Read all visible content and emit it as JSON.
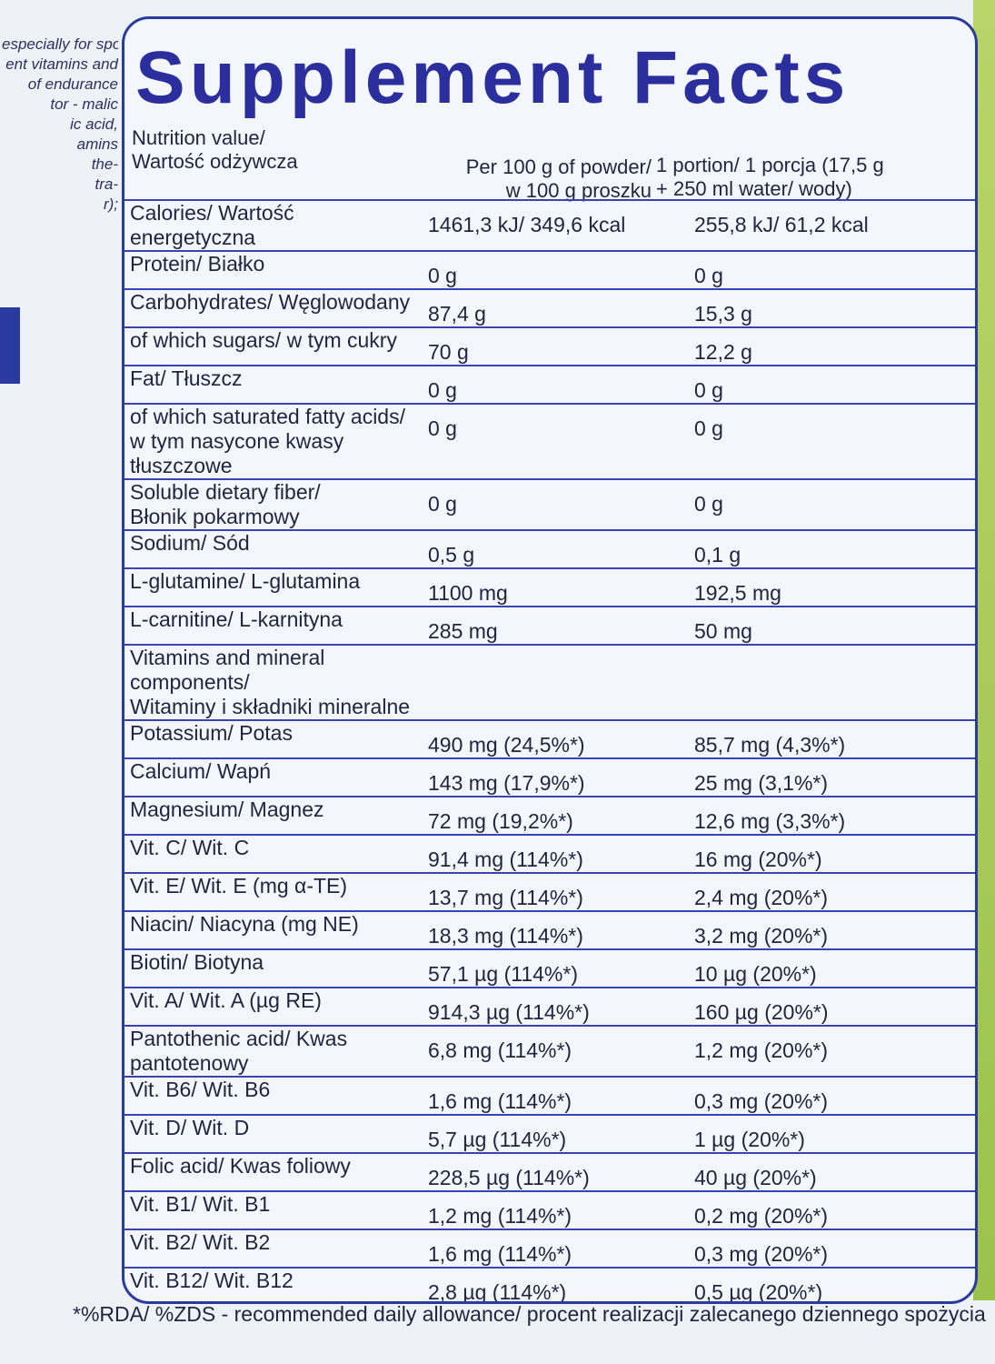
{
  "side_text": [
    "especially for sports",
    "ent vitamins and",
    "of endurance",
    "tor - malic",
    "ic acid,",
    "amins",
    "the-",
    "tra-",
    "r);"
  ],
  "title": "Supplement Facts",
  "header": {
    "nutrition": "Nutrition value/\nWartość odżywcza",
    "per100": "Per 100 g of powder/\nw 100 g proszku",
    "portion": "1 portion/ 1 porcja (17,5 g\n+ 250 ml water/ wody)"
  },
  "rows": [
    {
      "label": "Calories/ Wartość energetyczna",
      "per100": "1461,3 kJ/ 349,6 kcal",
      "portion": "255,8 kJ/ 61,2 kcal"
    },
    {
      "label": "Protein/ Białko",
      "per100": "0 g",
      "portion": "0 g"
    },
    {
      "label": "Carbohydrates/ Węglowodany",
      "per100": "87,4 g",
      "portion": "15,3 g"
    },
    {
      "label": "of which sugars/ w tym cukry",
      "per100": "70 g",
      "portion": "12,2 g"
    },
    {
      "label": "Fat/ Tłuszcz",
      "per100": "0 g",
      "portion": "0 g"
    },
    {
      "label": "of which saturated fatty acids/\nw tym nasycone kwasy tłuszczowe",
      "per100": "0 g",
      "portion": "0 g"
    },
    {
      "label": "Soluble dietary fiber/\nBłonik pokarmowy",
      "per100": "0 g",
      "portion": "0 g"
    },
    {
      "label": "Sodium/ Sód",
      "per100": "0,5 g",
      "portion": "0,1 g"
    },
    {
      "label": "L-glutamine/ L-glutamina",
      "per100": "1100 mg",
      "portion": "192,5 mg"
    },
    {
      "label": "L-carnitine/ L-karnityna",
      "per100": "285 mg",
      "portion": "50 mg"
    },
    {
      "label": "Vitamins and mineral components/\nWitaminy i składniki mineralne"
    },
    {
      "label": "Potassium/ Potas",
      "per100": "490 mg (24,5%*)",
      "portion": "85,7 mg (4,3%*)"
    },
    {
      "label": "Calcium/ Wapń",
      "per100": "143 mg (17,9%*)",
      "portion": "25 mg (3,1%*)"
    },
    {
      "label": "Magnesium/ Magnez",
      "per100": "72 mg (19,2%*)",
      "portion": "12,6 mg (3,3%*)"
    },
    {
      "label": "Vit. C/ Wit. C",
      "per100": "91,4 mg (114%*)",
      "portion": "16 mg (20%*)"
    },
    {
      "label": "Vit. E/ Wit. E (mg α-TE)",
      "per100": "13,7 mg (114%*)",
      "portion": "2,4 mg (20%*)"
    },
    {
      "label": "Niacin/ Niacyna (mg NE)",
      "per100": "18,3 mg (114%*)",
      "portion": "3,2 mg (20%*)"
    },
    {
      "label": "Biotin/ Biotyna",
      "per100": "57,1 µg (114%*)",
      "portion": "10 µg (20%*)"
    },
    {
      "label": "Vit. A/ Wit. A (µg RE)",
      "per100": "914,3 µg (114%*)",
      "portion": "160 µg (20%*)"
    },
    {
      "label": "Pantothenic acid/ Kwas pantotenowy",
      "per100": "6,8 mg (114%*)",
      "portion": "1,2 mg (20%*)"
    },
    {
      "label": "Vit. B6/ Wit. B6",
      "per100": "1,6 mg (114%*)",
      "portion": "0,3 mg (20%*)"
    },
    {
      "label": "Vit. D/ Wit. D",
      "per100": "5,7 µg (114%*)",
      "portion": "1 µg (20%*)"
    },
    {
      "label": "Folic acid/ Kwas foliowy",
      "per100": "228,5 µg (114%*)",
      "portion": "40 µg (20%*)"
    },
    {
      "label": "Vit. B1/ Wit. B1",
      "per100": "1,2 mg (114%*)",
      "portion": "0,2 mg (20%*)"
    },
    {
      "label": "Vit. B2/ Wit. B2",
      "per100": "1,6 mg (114%*)",
      "portion": "0,3 mg (20%*)"
    },
    {
      "label": "Vit. B12/ Wit. B12",
      "per100": "2,8 µg (114%*)",
      "portion": "0,5 µg (20%*)"
    }
  ],
  "footnote": "*%RDA/ %ZDS - recommended daily allowance/ procent realizacji zalecanego dziennego spożycia"
}
